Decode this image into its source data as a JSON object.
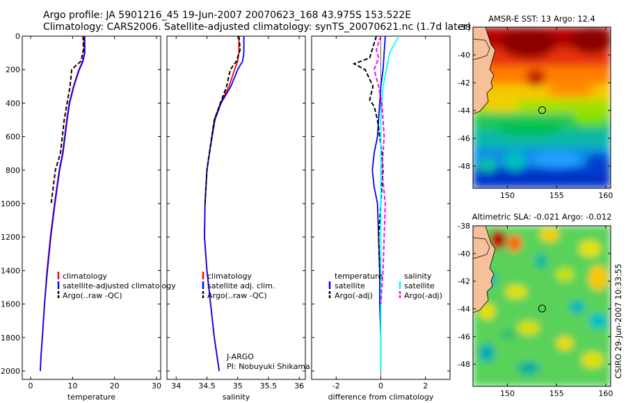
{
  "header": {
    "line1": "Argo profile: JA 5901216_45 19-Jun-2007 20070623_168 43.975S 153.522E",
    "line2": "Climatology: CARS2006. Satellite-adjusted climatology: synTS_20070621.nc (1.7d later)"
  },
  "colors": {
    "climatology": "#ff0000",
    "satellite": "#0000ff",
    "argo": "#000000",
    "sal_satellite": "#00ffff",
    "sal_argo": "#ff00ff"
  },
  "chart_data": [
    {
      "type": "line",
      "id": "temperature",
      "xlabel": "temperature",
      "ylabel": "",
      "xlim": [
        -2,
        31
      ],
      "ylim": [
        2050,
        0
      ],
      "xticks": [
        0,
        10,
        20,
        30
      ],
      "yticks": [
        0,
        200,
        400,
        600,
        800,
        1000,
        1200,
        1400,
        1600,
        1800,
        2000
      ],
      "legend": [
        "climatology",
        "satellite-adjusted climatology",
        "Argo(..raw -QC)"
      ],
      "series": [
        {
          "name": "climatology",
          "color": "#ff0000",
          "dash": "",
          "x": [
            12.7,
            12.8,
            12.4,
            11.5,
            10.2,
            9.2,
            8.6,
            7.6,
            6.8,
            5.7,
            4.7,
            3.9,
            3.3,
            2.8,
            2.5,
            2.3
          ],
          "y": [
            0,
            100,
            150,
            200,
            300,
            400,
            500,
            700,
            800,
            1000,
            1200,
            1400,
            1600,
            1800,
            1900,
            2000
          ]
        },
        {
          "name": "satellite-adjusted climatology",
          "color": "#0000ff",
          "dash": "",
          "x": [
            12.9,
            12.9,
            12.5,
            11.6,
            10.3,
            9.3,
            8.7,
            7.7,
            6.9,
            5.8,
            4.8,
            4.0,
            3.3,
            2.8,
            2.5,
            2.3
          ],
          "y": [
            0,
            100,
            150,
            200,
            300,
            400,
            500,
            700,
            800,
            1000,
            1200,
            1400,
            1600,
            1800,
            1900,
            2000
          ]
        },
        {
          "name": "Argo(..raw -QC)",
          "color": "#000000",
          "dash": "6,3",
          "x": [
            12.5,
            12.6,
            12.0,
            10.6,
            9.8,
            9.4,
            8.7,
            8.0,
            7.1,
            5.9,
            4.9
          ],
          "y": [
            0,
            80,
            150,
            180,
            200,
            300,
            400,
            500,
            700,
            800,
            1000
          ]
        }
      ]
    },
    {
      "type": "line",
      "id": "salinity",
      "xlabel": "salinity",
      "ylabel": "",
      "xlim": [
        33.85,
        36.1
      ],
      "ylim": [
        2050,
        0
      ],
      "xticks": [
        34,
        34.5,
        35,
        35.5,
        36
      ],
      "yticks": [
        0,
        200,
        400,
        600,
        800,
        1000,
        1200,
        1400,
        1600,
        1800,
        2000
      ],
      "legend": [
        "climatology",
        "satellite adj. clim.",
        "Argo(..raw -QC)"
      ],
      "annotation": [
        "J-ARGO",
        "PI: Nobuyuki Shikama"
      ],
      "series": [
        {
          "name": "climatology",
          "color": "#ff0000",
          "dash": "",
          "x": [
            35.02,
            35.02,
            35.0,
            34.95,
            34.86,
            34.72,
            34.62,
            34.54,
            34.5,
            34.47,
            34.46,
            34.5,
            34.56,
            34.62,
            34.66,
            34.7
          ],
          "y": [
            0,
            100,
            150,
            200,
            300,
            400,
            500,
            700,
            800,
            1000,
            1200,
            1400,
            1600,
            1800,
            1900,
            2000
          ]
        },
        {
          "name": "satellite adj. clim.",
          "color": "#0000ff",
          "dash": "",
          "x": [
            35.1,
            35.1,
            35.08,
            35.0,
            34.89,
            34.73,
            34.63,
            34.54,
            34.5,
            34.47,
            34.46,
            34.5,
            34.56,
            34.62,
            34.66,
            34.7
          ],
          "y": [
            0,
            100,
            150,
            200,
            300,
            400,
            500,
            700,
            800,
            1000,
            1200,
            1400,
            1600,
            1800,
            1900,
            2000
          ]
        },
        {
          "name": "Argo(..raw -QC)",
          "color": "#000000",
          "dash": "6,3",
          "x": [
            35.02,
            35.04,
            34.98,
            34.88,
            34.82,
            34.72,
            34.62,
            34.54,
            34.5,
            34.47
          ],
          "y": [
            0,
            80,
            150,
            200,
            300,
            400,
            500,
            700,
            800,
            1000
          ]
        }
      ]
    },
    {
      "type": "line",
      "id": "difference",
      "xlabel": "difference from climatology",
      "ylabel": "",
      "xlim": [
        -3.1,
        3.1
      ],
      "ylim": [
        2050,
        0
      ],
      "xticks": [
        -2,
        0,
        2
      ],
      "yticks": [
        0,
        200,
        400,
        600,
        800,
        1000,
        1200,
        1400,
        1600,
        1800,
        2000
      ],
      "legend_left": {
        "header": "temperature",
        "items": [
          "satellite",
          "Argo(-adj)"
        ]
      },
      "legend_right": {
        "header": "salinity",
        "items": [
          "satellite",
          "Argo(-adj)"
        ]
      },
      "series": [
        {
          "name": "temperature satellite",
          "color": "#0000ff",
          "dash": "",
          "x": [
            0.2,
            0.15,
            0.1,
            0.0,
            -0.05,
            -0.1,
            -0.15,
            -0.3,
            -0.38,
            -0.3,
            -0.15,
            -0.1,
            -0.05,
            -0.05,
            0.0,
            0.0
          ],
          "y": [
            0,
            100,
            200,
            300,
            400,
            500,
            600,
            700,
            800,
            900,
            1000,
            1200,
            1400,
            1600,
            1800,
            2000
          ]
        },
        {
          "name": "temperature Argo(-adj)",
          "color": "#000000",
          "dash": "6,3",
          "x": [
            -0.2,
            -0.5,
            -1.2,
            -0.7,
            -0.35,
            -0.5,
            -0.3,
            -0.15,
            0.05,
            0.1,
            0.0,
            -0.1,
            -0.05,
            0.0
          ],
          "y": [
            0,
            130,
            165,
            200,
            300,
            380,
            420,
            500,
            700,
            800,
            1000,
            1200,
            1400,
            1600
          ]
        },
        {
          "name": "salinity satellite",
          "color": "#00ffff",
          "dash": "",
          "x": [
            0.8,
            0.4,
            0.25,
            0.1,
            0.05,
            0.0,
            0.0,
            0.0,
            0.0,
            0.0
          ],
          "y": [
            0,
            100,
            200,
            300,
            400,
            500,
            800,
            1200,
            1600,
            2000
          ]
        },
        {
          "name": "salinity Argo(-adj)",
          "color": "#ff00ff",
          "dash": "6,3",
          "x": [
            0.0,
            -0.2,
            -0.1,
            -0.3,
            -0.1,
            0.05,
            0.15,
            0.05,
            0.2,
            0.1,
            0.0
          ],
          "y": [
            0,
            80,
            130,
            200,
            300,
            400,
            600,
            800,
            1000,
            1400,
            1600
          ]
        }
      ]
    },
    {
      "type": "heatmap",
      "id": "sst-map",
      "title": "AMSR-E SST: 13 Argo: 12.4",
      "xlim": [
        146.5,
        160.5
      ],
      "ylim": [
        -49.6,
        -38
      ],
      "xticks": [
        150,
        155,
        160
      ],
      "yticks": [
        -38,
        -40,
        -42,
        -44,
        -46,
        -48
      ],
      "marker": {
        "lon": 153.522,
        "lat": -43.975
      }
    },
    {
      "type": "heatmap",
      "id": "sla-map",
      "title": "Altimetric SLA: -0.021 Argo: -0.012",
      "xlim": [
        146.5,
        160.5
      ],
      "ylim": [
        -49.6,
        -38
      ],
      "xticks": [
        150,
        155,
        160
      ],
      "yticks": [
        -38,
        -40,
        -42,
        -44,
        -46,
        -48
      ],
      "marker": {
        "lon": 153.522,
        "lat": -43.975
      }
    }
  ],
  "footer": {
    "credit": "CSIRO 29-Jun-2007 10:33:55"
  }
}
